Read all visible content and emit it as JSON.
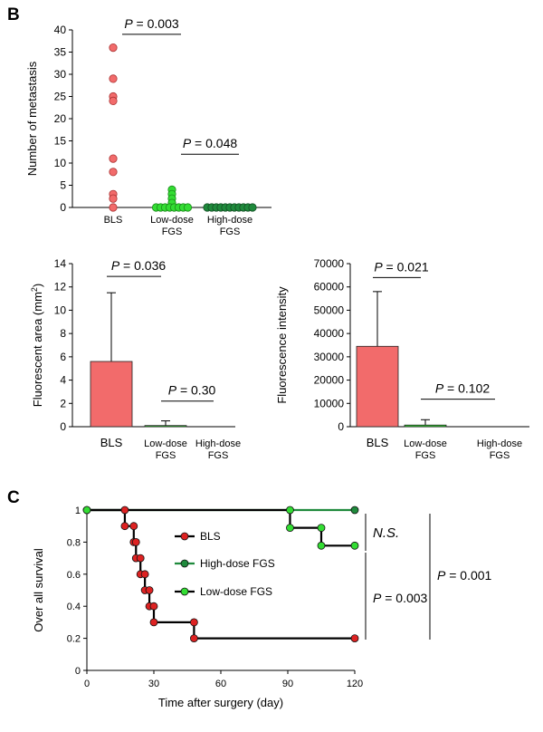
{
  "panel_labels": {
    "b": "B",
    "c": "C"
  },
  "colors": {
    "bls": "#f26b6b",
    "low": "#33dd33",
    "high": "#1f8a3c",
    "red_point": "#dd2222"
  },
  "chart_data": [
    {
      "id": "metastasis",
      "type": "scatter",
      "ylabel": "Number of metastasis",
      "ylim": [
        0,
        40
      ],
      "yticks": [
        0,
        5,
        10,
        15,
        20,
        25,
        30,
        35,
        40
      ],
      "categories": [
        [
          "BLS"
        ],
        [
          "Low-dose",
          "FGS"
        ],
        [
          "High-dose",
          "FGS"
        ]
      ],
      "series": [
        {
          "values": [
            36,
            29,
            25,
            24,
            11,
            8,
            3,
            2,
            0
          ]
        },
        {
          "values": [
            4,
            3,
            2,
            1,
            0,
            0,
            0,
            0,
            0,
            0,
            0,
            0
          ]
        },
        {
          "values": [
            0,
            0,
            0,
            0,
            0,
            0,
            0,
            0,
            0,
            0,
            0
          ]
        }
      ],
      "annotations": [
        {
          "text": "P = 0.003",
          "from": 0,
          "to": 1,
          "y": 39
        },
        {
          "text": "P = 0.048",
          "from": 1,
          "to": 2,
          "y": 12
        }
      ]
    },
    {
      "id": "fluorescent-area",
      "type": "bar",
      "ylabel_html": [
        "Fluorescent area (mm",
        "2",
        ")"
      ],
      "ylim": [
        0,
        14
      ],
      "yticks": [
        0,
        2,
        4,
        6,
        8,
        10,
        12,
        14
      ],
      "categories": [
        [
          "BLS"
        ],
        [
          "Low-dose",
          "FGS"
        ],
        [
          "High-dose",
          "FGS"
        ]
      ],
      "values": [
        5.6,
        0.1,
        0
      ],
      "errors": [
        5.9,
        0.4,
        0
      ],
      "annotations": [
        {
          "text": "P = 0.036",
          "from": 0,
          "to": 1,
          "y": 12.9
        },
        {
          "text": "P = 0.30",
          "from": 1,
          "to": 2,
          "y": 2.2
        }
      ]
    },
    {
      "id": "fluorescence-intensity",
      "type": "bar",
      "ylabel": "Fluorescence intensity",
      "ylim": [
        0,
        70000
      ],
      "yticks": [
        0,
        10000,
        20000,
        30000,
        40000,
        50000,
        60000,
        70000
      ],
      "categories": [
        [
          "BLS"
        ],
        [
          "Low-dose",
          "FGS"
        ],
        [
          "High-dose",
          "FGS"
        ]
      ],
      "values": [
        34500,
        700,
        0
      ],
      "errors": [
        23500,
        2300,
        0
      ],
      "annotations": [
        {
          "text": "P = 0.021",
          "from": 0,
          "to": 1,
          "y": 64000
        },
        {
          "text": "P = 0.102",
          "from": 1,
          "to": 2,
          "y": 11800
        }
      ]
    },
    {
      "id": "survival",
      "type": "line",
      "xlabel": "Time after surgery (day)",
      "ylabel": "Over all survival",
      "xlim": [
        0,
        120
      ],
      "ylim": [
        0,
        1
      ],
      "xticks": [
        0,
        30,
        60,
        90,
        120
      ],
      "yticks": [
        0,
        0.2,
        0.4,
        0.6,
        0.8,
        1
      ],
      "ytick_labels": [
        "0",
        "0.2",
        "0.4",
        "0.6",
        "0.8",
        "1"
      ],
      "series": [
        {
          "name": "BLS",
          "points": [
            [
              0,
              1
            ],
            [
              17,
              0.9
            ],
            [
              21,
              0.8
            ],
            [
              22,
              0.7
            ],
            [
              24,
              0.6
            ],
            [
              26,
              0.5
            ],
            [
              28,
              0.4
            ],
            [
              30,
              0.3
            ],
            [
              48,
              0.2
            ],
            [
              120,
              0.2
            ]
          ]
        },
        {
          "name": "High-dose FGS",
          "points": [
            [
              0,
              1
            ],
            [
              120,
              1
            ]
          ]
        },
        {
          "name": "Low-dose FGS",
          "points": [
            [
              0,
              1
            ],
            [
              91,
              0.889
            ],
            [
              105,
              0.778
            ],
            [
              120,
              0.778
            ]
          ]
        }
      ],
      "events": [
        {
          "series": 0,
          "points": [
            [
              17,
              1
            ],
            [
              17,
              0.9
            ],
            [
              21,
              0.9
            ],
            [
              21,
              0.8
            ],
            [
              22,
              0.8
            ],
            [
              22,
              0.7
            ],
            [
              24,
              0.7
            ],
            [
              24,
              0.6
            ],
            [
              26,
              0.6
            ],
            [
              26,
              0.5
            ],
            [
              28,
              0.5
            ],
            [
              28,
              0.4
            ],
            [
              30,
              0.4
            ],
            [
              30,
              0.3
            ],
            [
              48,
              0.3
            ],
            [
              48,
              0.2
            ],
            [
              120,
              0.2
            ]
          ]
        },
        {
          "series": 1,
          "points": [
            [
              120,
              1
            ]
          ]
        },
        {
          "series": 2,
          "points": [
            [
              0,
              1
            ],
            [
              91,
              1
            ],
            [
              91,
              0.889
            ],
            [
              105,
              0.889
            ],
            [
              105,
              0.778
            ],
            [
              120,
              0.778
            ]
          ]
        }
      ],
      "comparisons": [
        {
          "text": "N.S.",
          "italic": true
        },
        {
          "text": "P = 0.003"
        },
        {
          "text": "P = 0.001"
        }
      ]
    }
  ]
}
